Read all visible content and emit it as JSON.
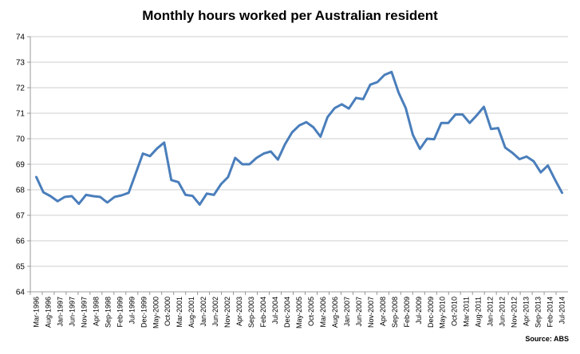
{
  "chart_data": {
    "type": "line",
    "title": "Monthly hours worked per Australian resident",
    "source": "Source: ABS",
    "xlabel": "",
    "ylabel": "",
    "ylim": [
      64,
      74
    ],
    "yticks": [
      64,
      65,
      66,
      67,
      68,
      69,
      70,
      71,
      72,
      73,
      74
    ],
    "grid": true,
    "legend": "none",
    "line_color": "#4a7ebb",
    "x_tick_labels": [
      "Mar-1996",
      "Aug-1996",
      "Jan-1997",
      "Jun-1997",
      "Nov-1997",
      "Apr-1998",
      "Sep-1998",
      "Feb-1999",
      "Jul-1999",
      "Dec-1999",
      "May-2000",
      "Oct-2000",
      "Mar-2001",
      "Aug-2001",
      "Jan-2002",
      "Jun-2002",
      "Nov-2002",
      "Apr-2003",
      "Sep-2003",
      "Feb-2004",
      "Jul-2004",
      "Dec-2004",
      "May-2005",
      "Oct-2005",
      "Mar-2006",
      "Aug-2006",
      "Jan-2007",
      "Jun-2007",
      "Nov-2007",
      "Apr-2008",
      "Sep-2008",
      "Feb-2009",
      "Jul-2009",
      "Dec-2009",
      "May-2010",
      "Oct-2010",
      "Mar-2011",
      "Aug-2011",
      "Jan-2012",
      "Jun-2012",
      "Nov-2012",
      "Apr-2013",
      "Sep-2013",
      "Feb-2014",
      "Jul-2014"
    ],
    "series": [
      {
        "values": [
          68.5,
          67.9,
          67.75,
          67.55,
          67.72,
          67.75,
          67.45,
          67.8,
          67.75,
          67.72,
          67.5,
          67.72,
          67.78,
          67.88,
          68.65,
          69.42,
          69.32,
          69.62,
          69.85,
          68.38,
          68.3,
          67.8,
          67.76,
          67.42,
          67.85,
          67.8,
          68.22,
          68.5,
          69.25,
          69.0,
          69.0,
          69.25,
          69.42,
          69.5,
          69.18,
          69.78,
          70.25,
          70.52,
          70.65,
          70.45,
          70.08,
          70.85,
          71.2,
          71.35,
          71.18,
          71.6,
          71.55,
          72.12,
          72.22,
          72.5,
          72.62,
          71.8,
          71.2,
          70.15,
          69.6,
          70.0,
          69.98,
          70.62,
          70.62,
          70.95,
          70.95,
          70.62,
          70.92,
          71.25,
          70.38,
          70.42,
          69.65,
          69.45,
          69.2,
          69.3,
          69.12,
          68.68,
          68.95,
          68.4,
          67.88
        ]
      }
    ]
  }
}
